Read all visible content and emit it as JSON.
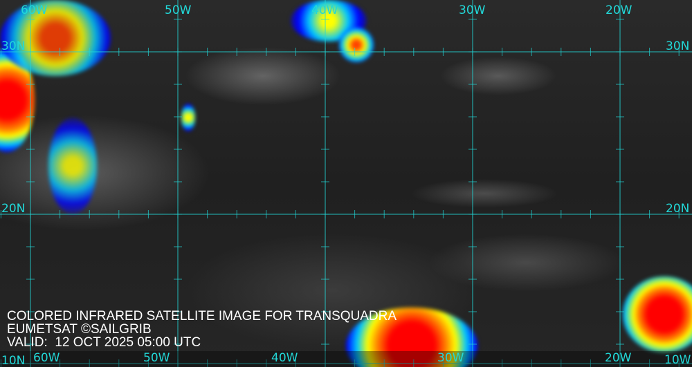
{
  "caption": {
    "line1": "COLORED INFRARED SATELLITE IMAGE FOR TRANSQUADRA",
    "line2": "EUMETSAT ©SAILGRIB",
    "line3": "VALID:  12 OCT 2025 05:00 UTC"
  },
  "grid": {
    "longitudes_top": [
      "60W",
      "50W",
      "40W",
      "30W",
      "20W"
    ],
    "longitudes_bottom": [
      "60W",
      "50W",
      "40W",
      "30W",
      "20W",
      "10W"
    ],
    "latitudes_left": [
      "30N",
      "20N",
      "10N"
    ],
    "latitudes_right": [
      "30N",
      "20N"
    ]
  },
  "colors": {
    "grid_line": "#22d8d8",
    "label": "#22d8d8",
    "caption": "#ffffff",
    "cloud_scale": [
      "#0000ff",
      "#00c8ff",
      "#ffff00",
      "#ff8000",
      "#ff0000"
    ]
  }
}
